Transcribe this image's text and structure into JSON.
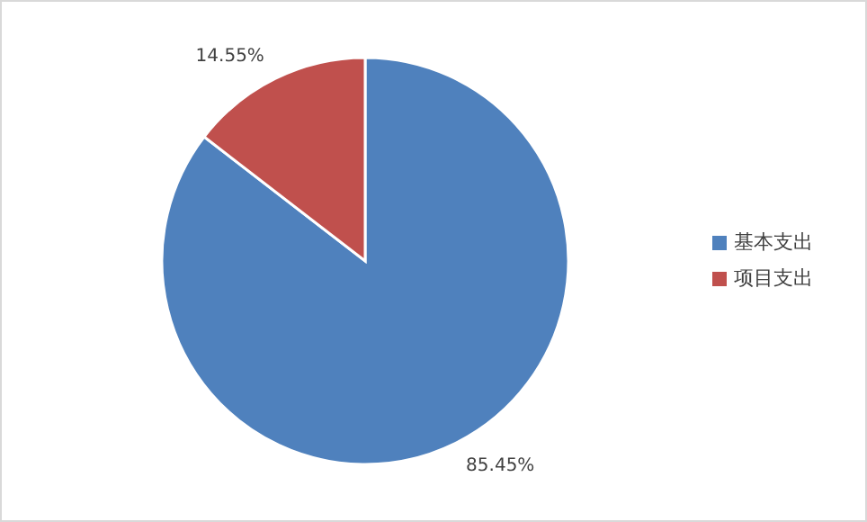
{
  "chart_data": {
    "type": "pie",
    "categories": [
      "基本支出",
      "项目支出"
    ],
    "values": [
      85.45,
      14.55
    ],
    "colors": [
      "#4f81bd",
      "#c0504d"
    ],
    "value_labels": [
      "85.45%",
      "14.55%"
    ],
    "legend": "right"
  }
}
